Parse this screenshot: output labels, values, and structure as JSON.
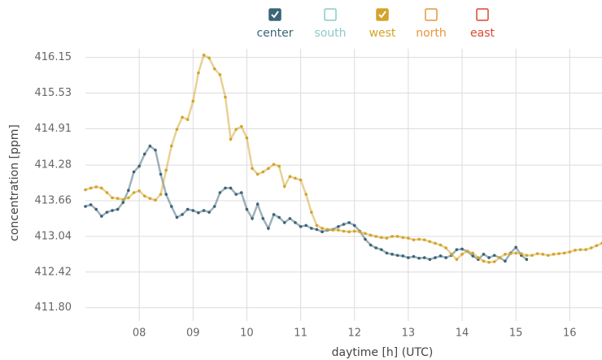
{
  "chart_data": {
    "type": "line",
    "xlabel": "daytime [h] (UTC)",
    "ylabel": "concentration [ppm]",
    "xlim": [
      7.0,
      16.6
    ],
    "ylim": [
      411.57,
      416.3
    ],
    "xticks": [
      {
        "value": 8,
        "label": "08"
      },
      {
        "value": 9,
        "label": "09"
      },
      10,
      11,
      12,
      13,
      14,
      15,
      16
    ],
    "yticks": [
      {
        "value": 411.8,
        "label": "411.80"
      },
      412.42,
      413.04,
      413.66,
      414.28,
      414.91,
      415.53,
      416.15
    ],
    "grid": true,
    "legend": "top",
    "x": [
      7.0,
      7.1,
      7.2,
      7.3,
      7.4,
      7.5,
      7.6,
      7.7,
      7.8,
      7.9,
      8.0,
      8.1,
      8.2,
      8.3,
      8.4,
      8.5,
      8.6,
      8.7,
      8.8,
      8.9,
      9.0,
      9.1,
      9.2,
      9.3,
      9.4,
      9.5,
      9.6,
      9.7,
      9.8,
      9.9,
      10.0,
      10.1,
      10.2,
      10.3,
      10.4,
      10.5,
      10.6,
      10.7,
      10.8,
      10.9,
      11.0,
      11.1,
      11.2,
      11.3,
      11.4,
      11.5,
      11.6,
      11.7,
      11.8,
      11.9,
      12.0,
      12.1,
      12.2,
      12.3,
      12.4,
      12.5,
      12.6,
      12.7,
      12.8,
      12.9,
      13.0,
      13.1,
      13.2,
      13.3,
      13.4,
      13.5,
      13.6,
      13.7,
      13.8,
      13.9,
      14.0,
      14.1,
      14.2,
      14.3,
      14.4,
      14.5,
      14.6,
      14.7,
      14.8,
      14.9,
      15.0,
      15.1,
      15.2,
      15.3,
      15.4,
      15.5,
      15.6,
      15.7,
      15.8,
      15.9,
      16.0,
      16.1,
      16.2,
      16.3,
      16.4,
      16.5,
      16.6
    ],
    "series": [
      {
        "name": "center",
        "color": "#3b6478",
        "visible": true,
        "values": [
          413.56,
          413.59,
          413.51,
          413.39,
          413.46,
          413.49,
          413.51,
          413.63,
          413.84,
          414.16,
          414.26,
          414.47,
          414.61,
          414.54,
          414.12,
          413.77,
          413.56,
          413.37,
          413.42,
          413.51,
          413.49,
          413.45,
          413.49,
          413.46,
          413.56,
          413.8,
          413.88,
          413.88,
          413.77,
          413.8,
          413.51,
          413.35,
          413.6,
          413.35,
          413.18,
          413.42,
          413.37,
          413.28,
          413.35,
          413.28,
          413.21,
          413.23,
          413.18,
          413.16,
          413.12,
          413.15,
          413.16,
          413.21,
          413.25,
          413.28,
          413.23,
          413.13,
          412.99,
          412.89,
          412.84,
          412.81,
          412.75,
          412.73,
          412.71,
          412.7,
          412.67,
          412.69,
          412.66,
          412.67,
          412.64,
          412.67,
          412.7,
          412.67,
          412.71,
          412.81,
          412.82,
          412.78,
          412.7,
          412.64,
          412.73,
          412.67,
          412.71,
          412.67,
          412.61,
          412.75,
          412.85,
          412.71,
          412.64,
          null,
          null,
          null,
          null,
          null,
          null,
          null,
          null,
          null,
          null,
          null,
          null,
          null,
          null
        ]
      },
      {
        "name": "south",
        "color": "#8ec9c9",
        "visible": false
      },
      {
        "name": "west",
        "color": "#d4a32a",
        "visible": true,
        "values": [
          413.85,
          413.88,
          413.9,
          413.88,
          413.8,
          413.71,
          413.7,
          413.68,
          413.71,
          413.8,
          413.83,
          413.74,
          413.7,
          413.67,
          413.77,
          414.19,
          414.61,
          414.9,
          415.11,
          415.07,
          415.39,
          415.88,
          416.19,
          416.14,
          415.95,
          415.85,
          415.46,
          414.73,
          414.9,
          414.95,
          414.75,
          414.22,
          414.12,
          414.16,
          414.22,
          414.29,
          414.26,
          413.91,
          414.08,
          414.05,
          414.02,
          413.77,
          413.46,
          413.23,
          413.18,
          413.16,
          413.15,
          413.15,
          413.13,
          413.12,
          413.13,
          413.12,
          413.09,
          413.06,
          413.04,
          413.02,
          413.01,
          413.04,
          413.04,
          413.02,
          413.01,
          412.98,
          412.99,
          412.98,
          412.95,
          412.92,
          412.89,
          412.84,
          412.73,
          412.64,
          412.73,
          412.78,
          412.75,
          412.67,
          412.61,
          412.59,
          412.6,
          412.67,
          412.73,
          412.74,
          412.75,
          412.74,
          412.71,
          412.71,
          412.74,
          412.73,
          412.71,
          412.73,
          412.74,
          412.75,
          412.77,
          412.8,
          412.81,
          412.81,
          412.84,
          412.88,
          412.92
        ]
      },
      {
        "name": "north",
        "color": "#e8953a",
        "visible": false
      },
      {
        "name": "east",
        "color": "#d9492c",
        "visible": false
      }
    ]
  }
}
